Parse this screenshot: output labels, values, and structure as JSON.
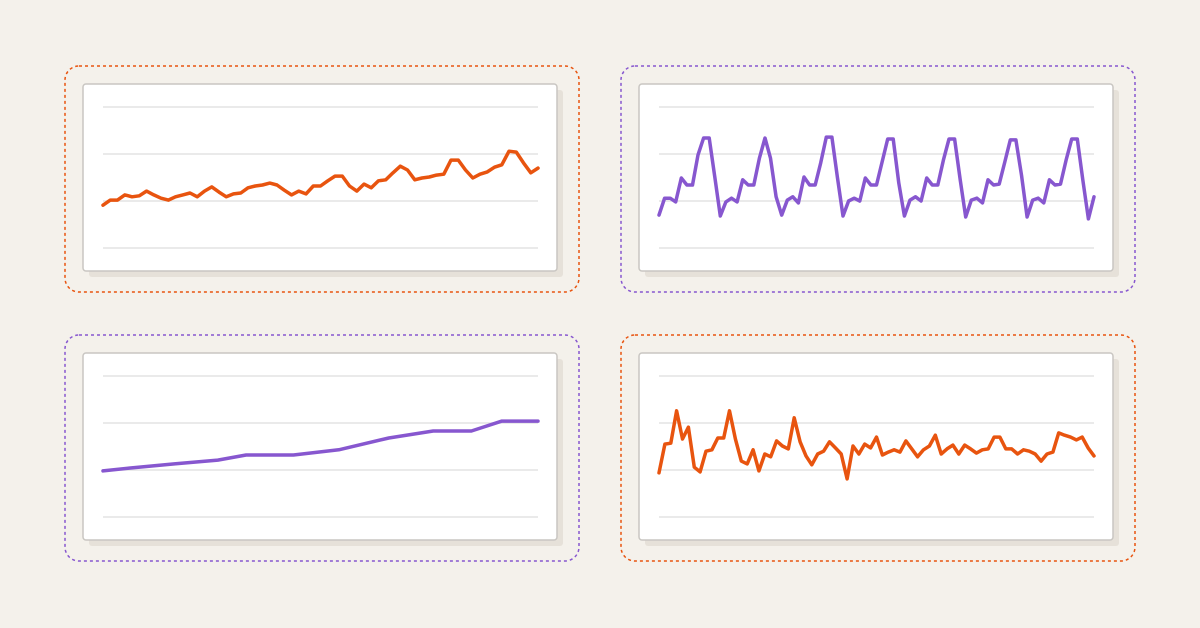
{
  "chart_data": [
    {
      "type": "line",
      "color": "#e8540f",
      "ylim": [
        0,
        3
      ],
      "yticks": [
        0,
        1,
        2,
        3
      ],
      "grid": true,
      "categories": [
        null,
        null,
        null,
        null,
        null,
        null,
        null,
        null,
        null,
        null,
        null,
        null,
        null,
        null,
        null,
        null,
        null,
        null,
        null,
        null,
        null,
        null,
        null,
        null,
        null,
        null,
        null,
        null,
        null,
        null,
        null,
        null,
        null,
        null,
        null,
        null,
        null,
        null,
        null,
        null,
        null,
        null,
        null,
        null,
        null,
        null,
        null,
        null,
        null,
        null,
        null,
        null,
        null,
        null,
        null,
        null,
        null,
        null,
        null,
        null,
        null
      ],
      "values": [
        0.91,
        1.02,
        1.02,
        1.13,
        1.09,
        1.11,
        1.21,
        1.13,
        1.06,
        1.02,
        1.09,
        1.13,
        1.17,
        1.09,
        1.21,
        1.3,
        1.19,
        1.09,
        1.15,
        1.17,
        1.28,
        1.32,
        1.34,
        1.38,
        1.34,
        1.23,
        1.13,
        1.21,
        1.15,
        1.32,
        1.32,
        1.43,
        1.53,
        1.53,
        1.32,
        1.21,
        1.36,
        1.28,
        1.43,
        1.45,
        1.6,
        1.74,
        1.66,
        1.45,
        1.49,
        1.51,
        1.55,
        1.57,
        1.87,
        1.87,
        1.66,
        1.49,
        1.57,
        1.62,
        1.72,
        1.77,
        2.06,
        2.04,
        1.81,
        1.6,
        1.7
      ]
    },
    {
      "type": "line",
      "color": "#8757cf",
      "ylim": [
        0,
        3
      ],
      "yticks": [
        0,
        1,
        2,
        3
      ],
      "grid": true,
      "categories": [
        null,
        null,
        null,
        null,
        null,
        null,
        null,
        null,
        null,
        null,
        null,
        null,
        null,
        null,
        null,
        null,
        null,
        null,
        null,
        null,
        null,
        null,
        null,
        null,
        null,
        null,
        null,
        null,
        null,
        null,
        null,
        null,
        null,
        null,
        null,
        null,
        null,
        null,
        null,
        null,
        null,
        null,
        null,
        null,
        null,
        null,
        null,
        null,
        null,
        null,
        null,
        null,
        null,
        null,
        null,
        null,
        null,
        null,
        null,
        null,
        null,
        null,
        null,
        null,
        null,
        null,
        null,
        null,
        null,
        null,
        null,
        null,
        null,
        null,
        null,
        null,
        null,
        null,
        null
      ],
      "values": [
        0.7,
        1.06,
        1.06,
        0.98,
        1.49,
        1.34,
        1.34,
        1.98,
        2.34,
        2.34,
        1.51,
        0.68,
        0.98,
        1.06,
        0.98,
        1.45,
        1.34,
        1.34,
        1.91,
        2.34,
        1.91,
        1.09,
        0.7,
        1.02,
        1.09,
        0.96,
        1.51,
        1.34,
        1.34,
        1.81,
        2.36,
        2.36,
        1.49,
        0.68,
        1.0,
        1.06,
        1.0,
        1.49,
        1.34,
        1.34,
        1.83,
        2.32,
        2.32,
        1.38,
        0.68,
        1.02,
        1.09,
        1.0,
        1.49,
        1.34,
        1.34,
        1.87,
        2.32,
        2.32,
        1.45,
        0.66,
        1.02,
        1.06,
        0.96,
        1.45,
        1.34,
        1.36,
        1.83,
        2.3,
        2.3,
        1.55,
        0.66,
        1.02,
        1.06,
        0.96,
        1.45,
        1.34,
        1.36,
        1.87,
        2.32,
        2.32,
        1.45,
        0.62,
        1.09
      ]
    },
    {
      "type": "line",
      "color": "#8757cf",
      "ylim": [
        0,
        3
      ],
      "yticks": [
        0,
        1,
        2,
        3
      ],
      "grid": true,
      "xlim": [
        0,
        100
      ],
      "x": [
        0,
        6,
        16.4,
        26.4,
        32.9,
        43.8,
        54.2,
        65.7,
        75.9,
        84.7,
        91.7,
        100
      ],
      "values": [
        0.98,
        1.04,
        1.13,
        1.21,
        1.32,
        1.32,
        1.43,
        1.68,
        1.83,
        1.83,
        2.04,
        2.04
      ]
    },
    {
      "type": "line",
      "color": "#e8540f",
      "ylim": [
        0,
        3
      ],
      "yticks": [
        0,
        1,
        2,
        3
      ],
      "grid": true,
      "categories": [
        null,
        null,
        null,
        null,
        null,
        null,
        null,
        null,
        null,
        null,
        null,
        null,
        null,
        null,
        null,
        null,
        null,
        null,
        null,
        null,
        null,
        null,
        null,
        null,
        null,
        null,
        null,
        null,
        null,
        null,
        null,
        null,
        null,
        null,
        null,
        null,
        null,
        null,
        null,
        null,
        null,
        null,
        null,
        null,
        null,
        null,
        null,
        null,
        null,
        null,
        null,
        null,
        null,
        null,
        null,
        null,
        null,
        null,
        null,
        null,
        null,
        null,
        null,
        null,
        null,
        null,
        null,
        null,
        null,
        null,
        null,
        null,
        null,
        null,
        null
      ],
      "values": [
        0.94,
        1.55,
        1.57,
        2.26,
        1.66,
        1.91,
        1.06,
        0.96,
        1.4,
        1.43,
        1.68,
        1.68,
        2.26,
        1.66,
        1.19,
        1.13,
        1.43,
        0.98,
        1.34,
        1.28,
        1.62,
        1.51,
        1.45,
        2.11,
        1.6,
        1.3,
        1.11,
        1.34,
        1.4,
        1.6,
        1.47,
        1.34,
        0.81,
        1.51,
        1.34,
        1.55,
        1.47,
        1.7,
        1.32,
        1.38,
        1.43,
        1.38,
        1.62,
        1.45,
        1.28,
        1.43,
        1.51,
        1.74,
        1.34,
        1.45,
        1.53,
        1.34,
        1.53,
        1.45,
        1.36,
        1.43,
        1.45,
        1.7,
        1.7,
        1.45,
        1.45,
        1.34,
        1.43,
        1.4,
        1.34,
        1.19,
        1.34,
        1.38,
        1.79,
        1.74,
        1.7,
        1.64,
        1.7,
        1.47,
        1.3
      ]
    }
  ]
}
